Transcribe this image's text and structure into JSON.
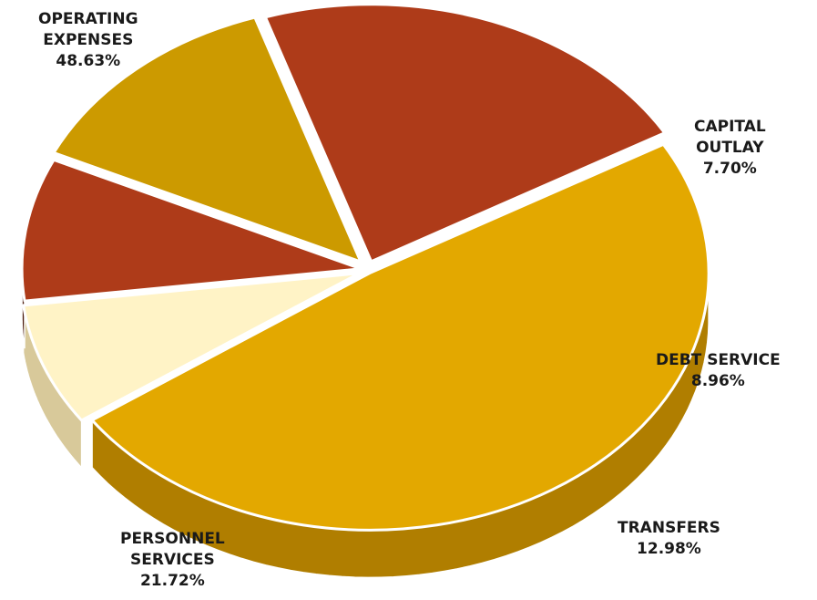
{
  "chart_data": {
    "type": "pie",
    "title": "",
    "slices": [
      {
        "label_lines": [
          "OPERATING",
          "EXPENSES"
        ],
        "value": "48.63%",
        "pct": 48.63,
        "color": "#e3a800",
        "side": "#b07e00"
      },
      {
        "label_lines": [
          "CAPITAL",
          "OUTLAY"
        ],
        "value": "7.70%",
        "pct": 7.7,
        "color": "#fff3c6",
        "side": "#d8c99a"
      },
      {
        "label_lines": [
          "DEBT SERVICE"
        ],
        "value": "8.96%",
        "pct": 8.96,
        "color": "#ae3b19",
        "side": "#4a1a0c"
      },
      {
        "label_lines": [
          "TRANSFERS"
        ],
        "value": "12.98%",
        "pct": 12.98,
        "color": "#cc9a00",
        "side": "#5e4200"
      },
      {
        "label_lines": [
          "PERSONNEL",
          "SERVICES"
        ],
        "value": "21.72%",
        "pct": 21.72,
        "color": "#ae3b19",
        "side": "#5c1c0d"
      }
    ]
  }
}
